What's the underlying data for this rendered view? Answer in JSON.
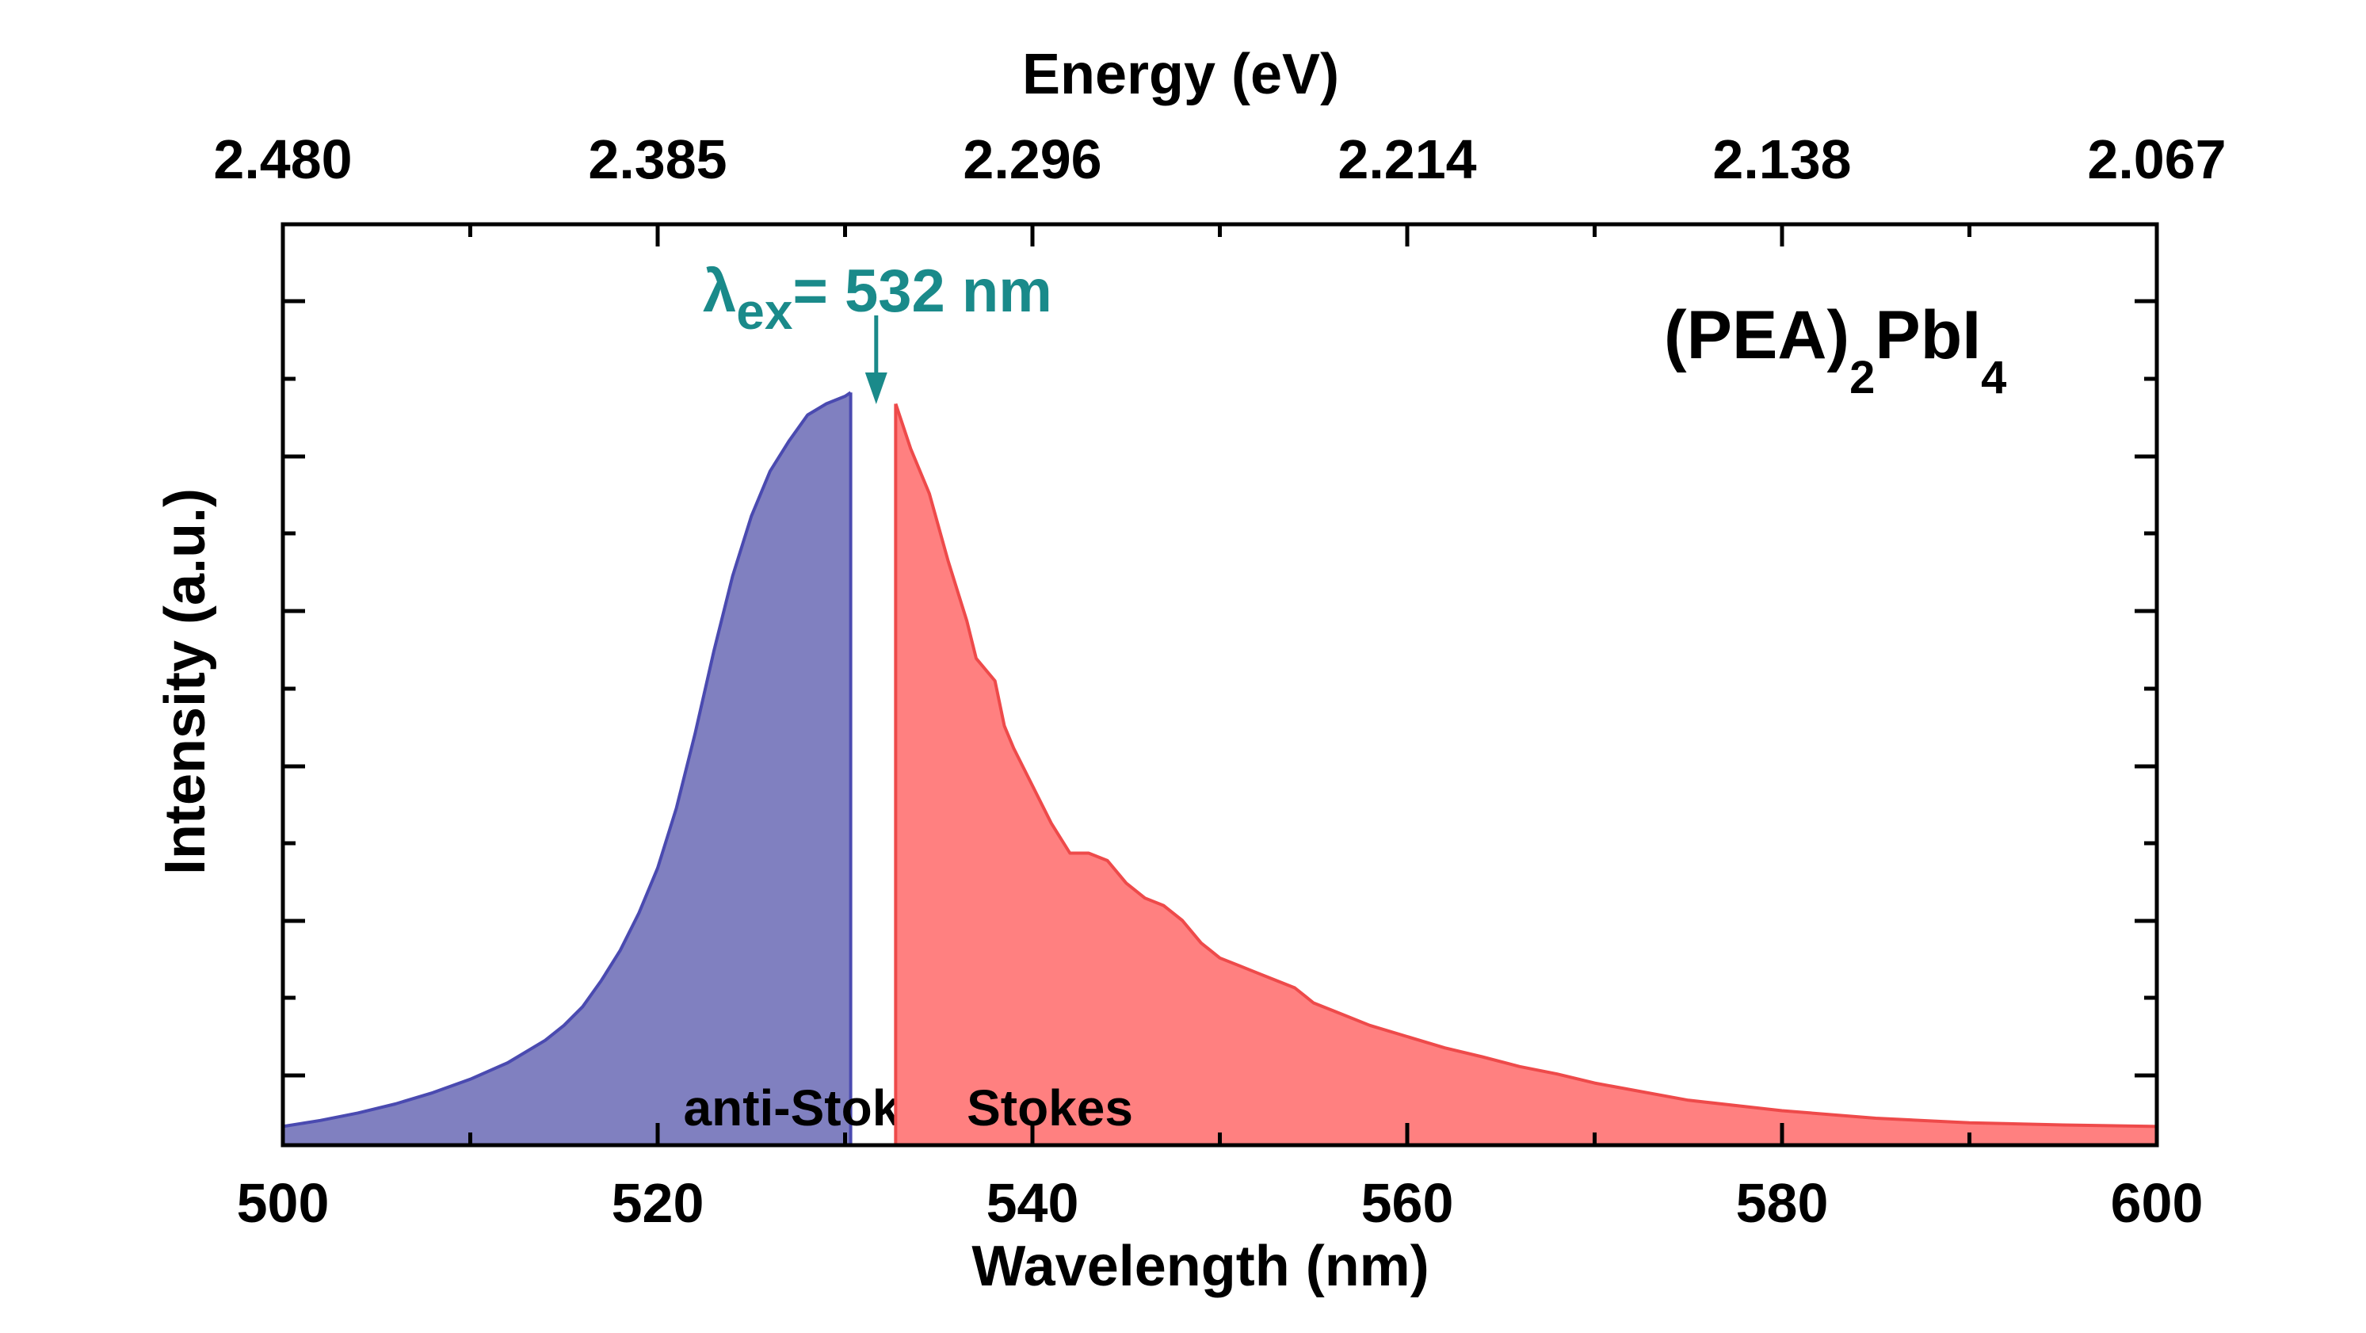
{
  "chart_data": {
    "type": "area",
    "xlabel": "Wavelength (nm)",
    "ylabel": "Intensity (a.u.)",
    "top_axis_label": "Energy (eV)",
    "xlim": [
      500,
      600
    ],
    "ylim": [
      0,
      1.0
    ],
    "x_ticks": [
      "500",
      "520",
      "540",
      "560",
      "580",
      "600"
    ],
    "x_tick_values": [
      500,
      520,
      540,
      560,
      580,
      600
    ],
    "top_ticks": [
      "2.480",
      "2.385",
      "2.296",
      "2.214",
      "2.138",
      "2.067"
    ],
    "top_tick_values": [
      500,
      520,
      540,
      560,
      580,
      600
    ],
    "sample_label": {
      "main": "(PEA)",
      "sub1": "2",
      "mid": "PbI",
      "sub2": "4"
    },
    "excitation": {
      "symbol": "λ",
      "subscript": "ex",
      "text": "= 532 nm",
      "x": 532,
      "color": "#1a8a8a"
    },
    "series": [
      {
        "name": "anti-Stokes",
        "fill": "#8080c0",
        "stroke": "#4a4ab0",
        "x": [
          500,
          502,
          504,
          506,
          508,
          510,
          512,
          514,
          515,
          516,
          517,
          518,
          519,
          520,
          521,
          522,
          523,
          524,
          525,
          526,
          527,
          528,
          529,
          530,
          530.3
        ],
        "y": [
          0.025,
          0.033,
          0.043,
          0.055,
          0.07,
          0.088,
          0.11,
          0.14,
          0.16,
          0.185,
          0.22,
          0.26,
          0.31,
          0.37,
          0.45,
          0.55,
          0.66,
          0.76,
          0.84,
          0.9,
          0.94,
          0.975,
          0.99,
          1.0,
          1.005
        ]
      },
      {
        "name": "Stokes",
        "fill": "#ff8080",
        "stroke": "#ee4a4a",
        "x": [
          532.7,
          533.5,
          534.5,
          535.5,
          536.5,
          537,
          538,
          538.5,
          539,
          540,
          541,
          542,
          543,
          544,
          545,
          546,
          547,
          548,
          549,
          550,
          551,
          552,
          553,
          554,
          555,
          556,
          558,
          560,
          562,
          564,
          566,
          568,
          570,
          575,
          580,
          585,
          590,
          595,
          600
        ],
        "y": [
          0.99,
          0.93,
          0.87,
          0.78,
          0.7,
          0.65,
          0.62,
          0.56,
          0.53,
          0.48,
          0.43,
          0.39,
          0.39,
          0.38,
          0.35,
          0.33,
          0.32,
          0.3,
          0.27,
          0.25,
          0.24,
          0.23,
          0.22,
          0.21,
          0.19,
          0.18,
          0.16,
          0.145,
          0.13,
          0.118,
          0.105,
          0.095,
          0.083,
          0.06,
          0.046,
          0.036,
          0.03,
          0.027,
          0.025
        ]
      }
    ]
  }
}
